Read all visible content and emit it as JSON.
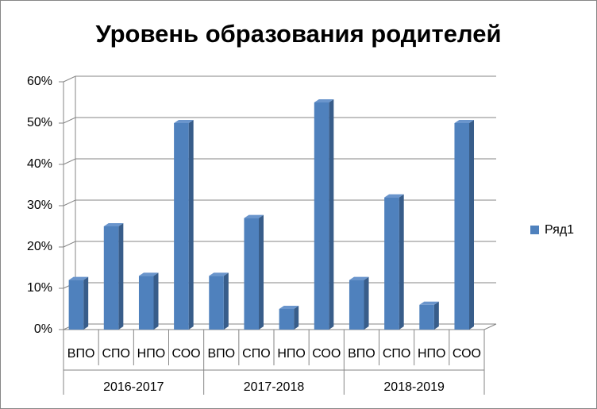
{
  "chart_data": {
    "type": "bar3d",
    "title": "Уровень образования родителей",
    "categories": [
      "ВПО",
      "СПО",
      "НПО",
      "СОО",
      "ВПО",
      "СПО",
      "НПО",
      "СОО",
      "ВПО",
      "СПО",
      "НПО",
      "СОО"
    ],
    "category_groups": [
      "2016-2017",
      "2017-2018",
      "2018-2019"
    ],
    "series": [
      {
        "name": "Ряд1",
        "color": "#4f81bd",
        "values": [
          12,
          25,
          13,
          50,
          13,
          27,
          5,
          55,
          12,
          32,
          6,
          50
        ]
      }
    ],
    "ylim": [
      0,
      60
    ],
    "yticks": [
      {
        "value": 0,
        "label": "0%"
      },
      {
        "value": 10,
        "label": "10%"
      },
      {
        "value": 20,
        "label": "20%"
      },
      {
        "value": 30,
        "label": "30%"
      },
      {
        "value": 40,
        "label": "40%"
      },
      {
        "value": 50,
        "label": "50%"
      },
      {
        "value": 60,
        "label": "60%"
      }
    ],
    "grid": true,
    "legend_position": "right"
  }
}
